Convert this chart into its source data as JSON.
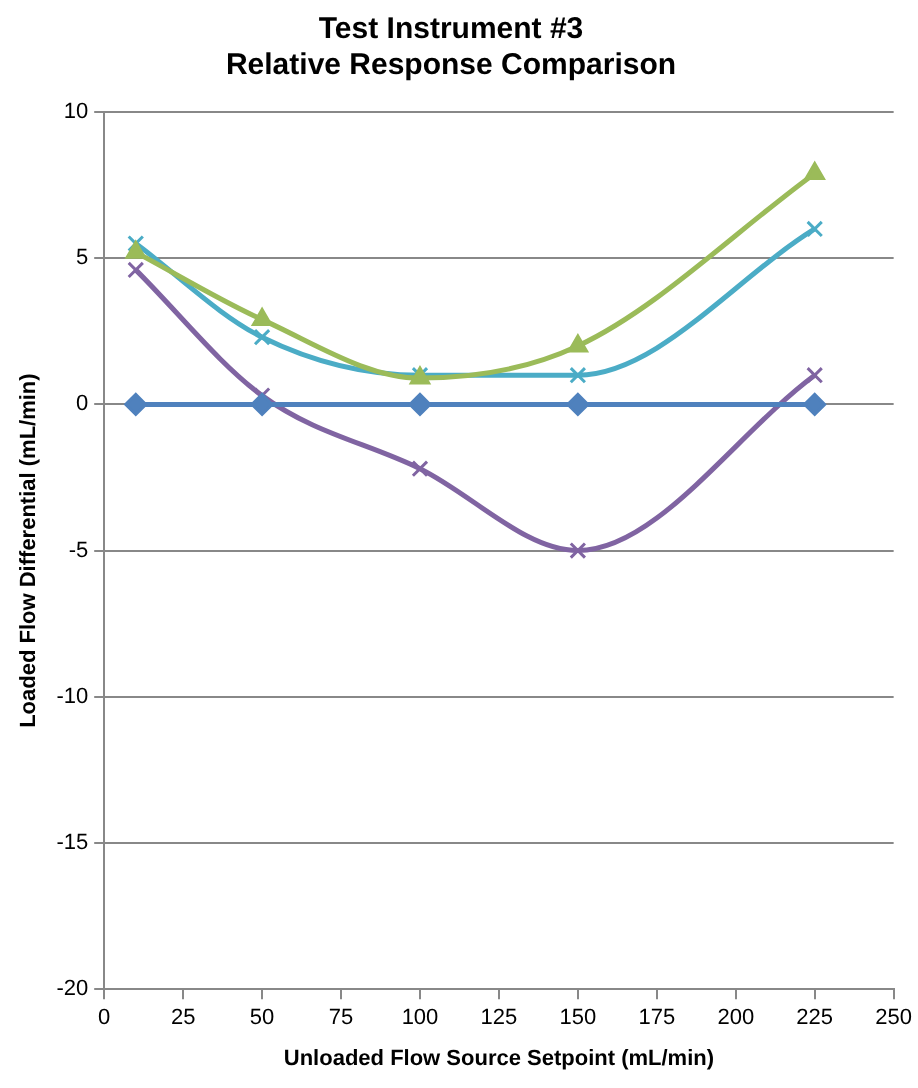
{
  "chart_data": {
    "type": "line",
    "title": "Test Instrument #3\nRelative Response Comparison",
    "xlabel": "Unloaded Flow Source Setpoint (mL/min)",
    "ylabel": "Loaded Flow Differential (mL/min)",
    "x": [
      10,
      50,
      100,
      150,
      225
    ],
    "series": [
      {
        "color": "#4f81bd",
        "marker": "diamond",
        "values": [
          0,
          0,
          0,
          0,
          0
        ]
      },
      {
        "color": "#9bbb59",
        "marker": "triangle",
        "values": [
          5.2,
          2.9,
          0.9,
          2.0,
          7.9
        ]
      },
      {
        "color": "#4bacc6",
        "marker": "cross",
        "values": [
          5.5,
          2.3,
          1.0,
          1.0,
          6.0
        ]
      },
      {
        "color": "#8064a2",
        "marker": "cross",
        "values": [
          4.6,
          0.3,
          -2.2,
          -5.0,
          1.0
        ]
      }
    ],
    "xlim": [
      0,
      250
    ],
    "xticks": [
      0,
      25,
      50,
      75,
      100,
      125,
      150,
      175,
      200,
      225,
      250
    ],
    "ylim": [
      -20,
      10
    ],
    "yticks": [
      -20,
      -15,
      -10,
      -5,
      0,
      5,
      10
    ],
    "grid": "y",
    "legend": false
  }
}
